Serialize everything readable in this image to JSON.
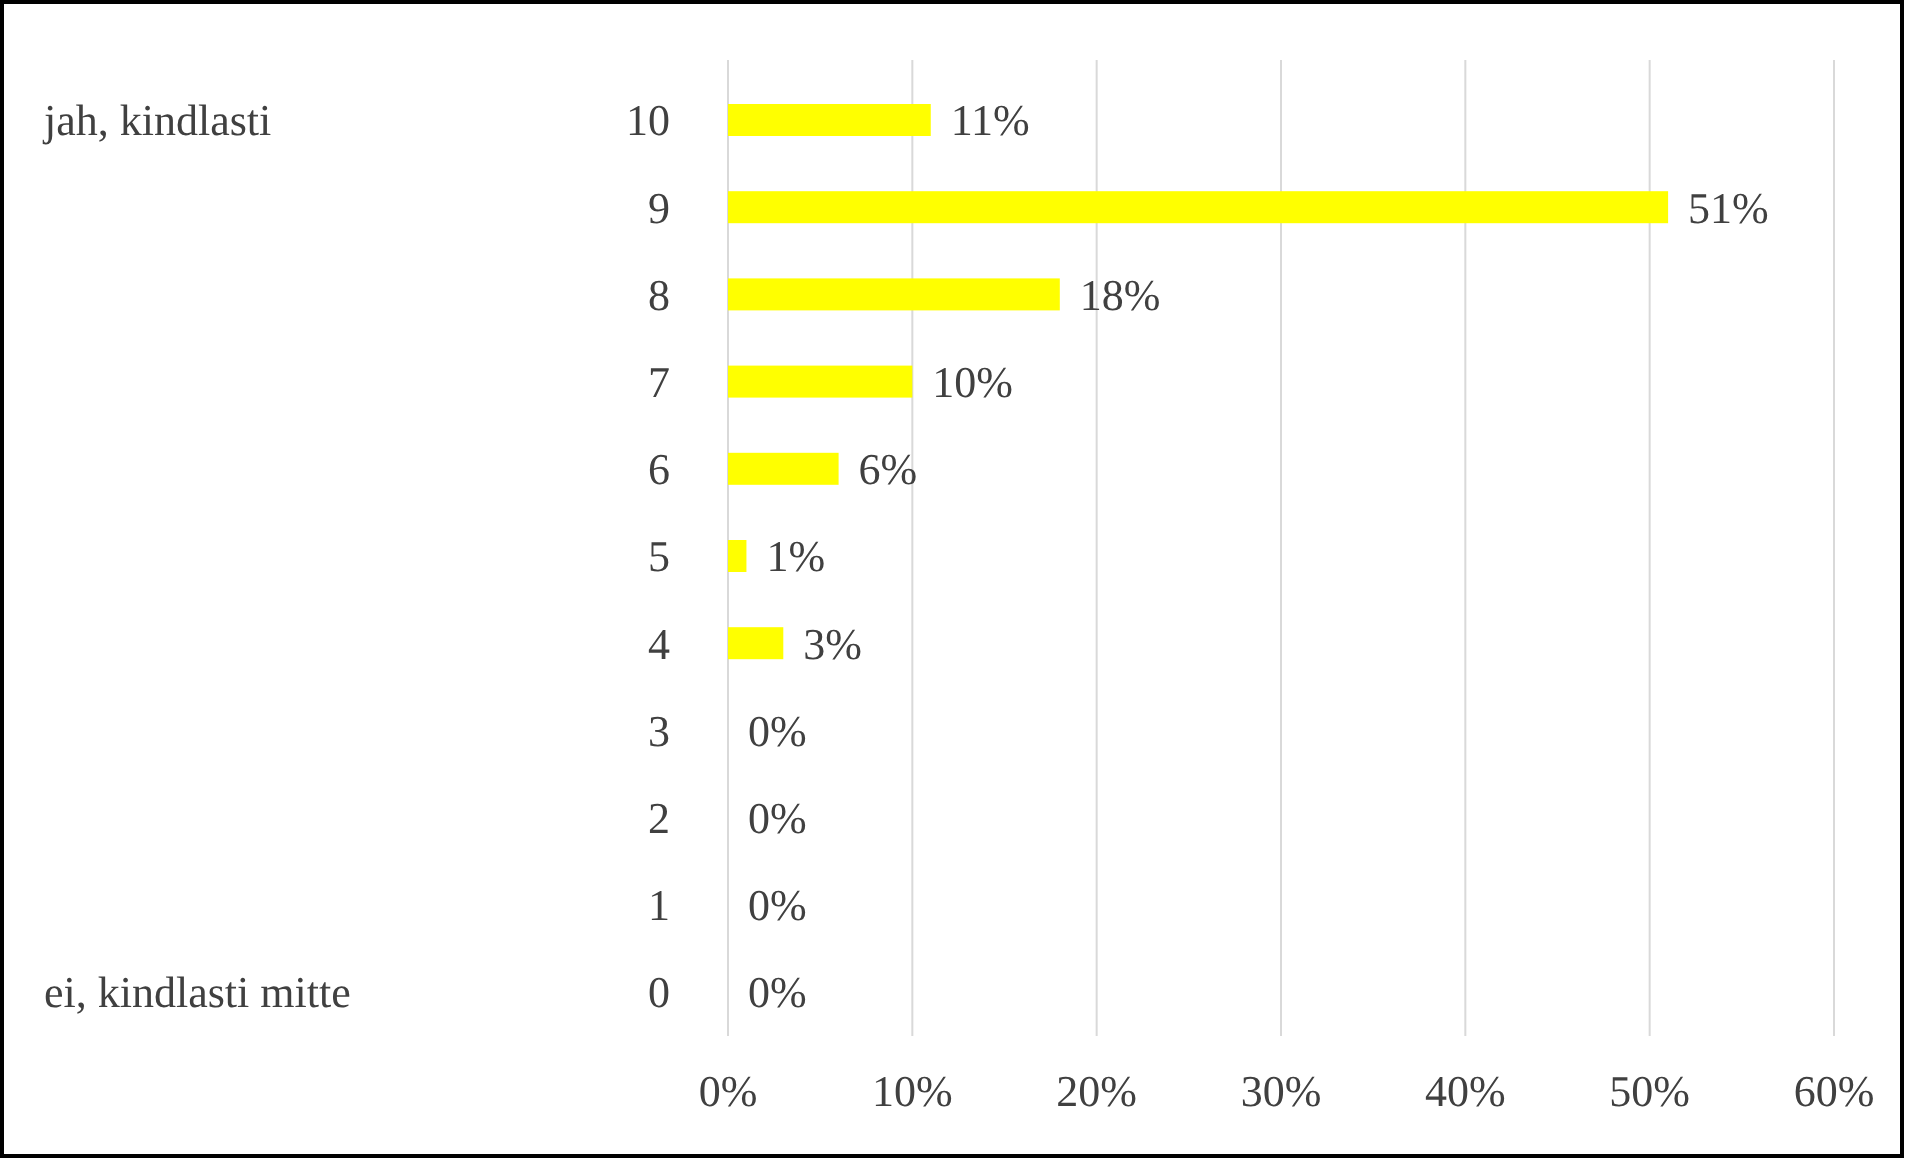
{
  "chart_data": {
    "type": "bar",
    "orientation": "horizontal",
    "categories": [
      "10",
      "9",
      "8",
      "7",
      "6",
      "5",
      "4",
      "3",
      "2",
      "1",
      "0"
    ],
    "values": [
      11,
      51,
      18,
      10,
      6,
      1,
      3,
      0,
      0,
      0,
      0
    ],
    "value_labels": [
      "11%",
      "51%",
      "18%",
      "10%",
      "6%",
      "1%",
      "3%",
      "0%",
      "0%",
      "0%",
      "0%"
    ],
    "color": "#ffff00",
    "xlim": [
      0,
      60
    ],
    "xticks": [
      {
        "value": 0,
        "label": "0%"
      },
      {
        "value": 10,
        "label": "10%"
      },
      {
        "value": 20,
        "label": "20%"
      },
      {
        "value": 30,
        "label": "30%"
      },
      {
        "value": 40,
        "label": "40%"
      },
      {
        "value": 50,
        "label": "50%"
      },
      {
        "value": 60,
        "label": "60%"
      }
    ],
    "grid": "x",
    "annotations": [
      "jah, kindlasti",
      "ei, kindlasti mitte"
    ]
  }
}
